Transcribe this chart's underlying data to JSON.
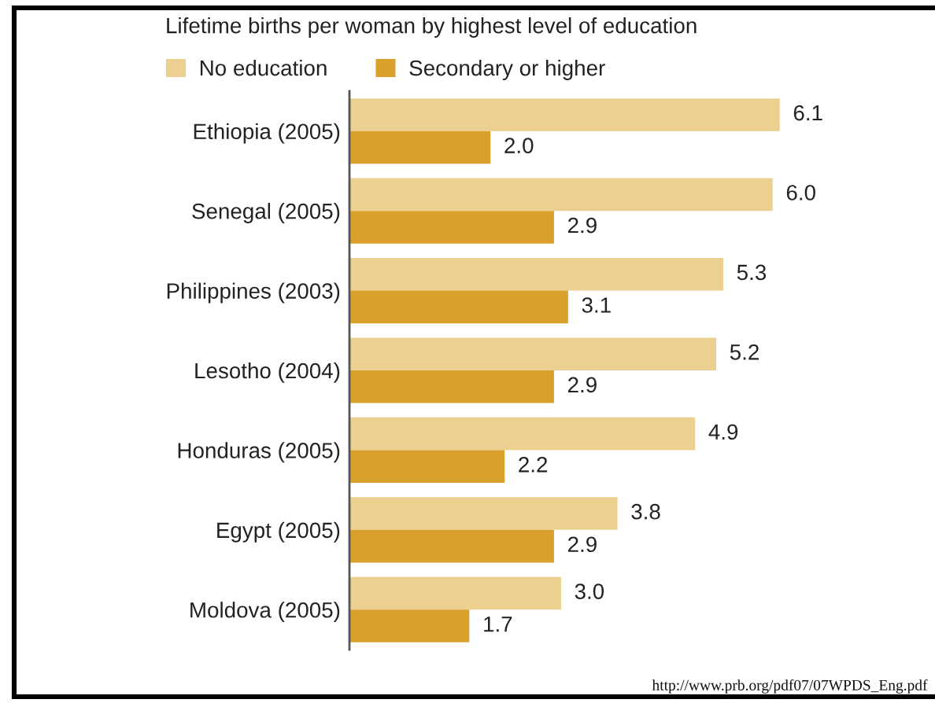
{
  "chart_data": {
    "type": "bar",
    "orientation": "horizontal",
    "title": "Lifetime births per woman by highest level of education",
    "categories": [
      "Ethiopia (2005)",
      "Senegal (2005)",
      "Philippines (2003)",
      "Lesotho (2004)",
      "Honduras (2005)",
      "Egypt (2005)",
      "Moldova (2005)"
    ],
    "series": [
      {
        "name": "No education",
        "color": "#ecd08f",
        "values": [
          6.1,
          6.0,
          5.3,
          5.2,
          4.9,
          3.8,
          3.0
        ],
        "value_labels": [
          "6.1",
          "6.0",
          "5.3",
          "5.2",
          "4.9",
          "3.8",
          "3.0"
        ]
      },
      {
        "name": "Secondary or higher",
        "color": "#d9a02b",
        "values": [
          2.0,
          2.9,
          3.1,
          2.9,
          2.2,
          2.9,
          1.7
        ],
        "value_labels": [
          "2.0",
          "2.9",
          "3.1",
          "2.9",
          "2.2",
          "2.9",
          "1.7"
        ]
      }
    ],
    "legend": "top left",
    "tick_labels": "y",
    "annotations": [
      "http://www.prb.org/pdf07/07WPDS_Eng.pdf"
    ]
  }
}
